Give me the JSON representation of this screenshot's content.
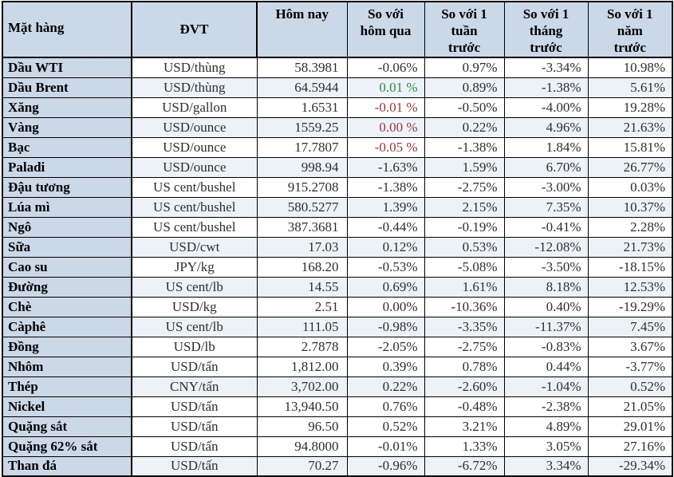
{
  "colors": {
    "header_bg": "#cbd8e7",
    "stripe_bg": "#edf2f9",
    "text": "#2e2e2e",
    "negative_red": "#9c3537",
    "positive_green": "#2f8b3a"
  },
  "chart_data": {
    "type": "table",
    "columns": [
      {
        "key": "name",
        "label": "Mặt hàng"
      },
      {
        "key": "unit",
        "label": "ĐVT"
      },
      {
        "key": "today",
        "label": "Hôm nay"
      },
      {
        "key": "d1",
        "label": "So với\nhôm qua"
      },
      {
        "key": "w1",
        "label": "So với 1\ntuần\ntrước"
      },
      {
        "key": "m1",
        "label": "So với 1\ntháng\ntrước"
      },
      {
        "key": "y1",
        "label": "So với 1\nnăm\ntrước"
      }
    ],
    "rows": [
      {
        "name": "Dầu WTI",
        "unit": "USD/thùng",
        "today": "58.3981",
        "d1": "-0.06%",
        "d1_color": "",
        "w1": "0.97%",
        "m1": "-3.34%",
        "y1": "10.98%",
        "shaded": false
      },
      {
        "name": "Dầu Brent",
        "unit": "USD/thùng",
        "today": "64.5944",
        "d1": "0.01 %",
        "d1_color": "green",
        "w1": "0.89%",
        "m1": "-1.38%",
        "y1": "5.61%",
        "shaded": true
      },
      {
        "name": "Xăng",
        "unit": "USD/gallon",
        "today": "1.6531",
        "d1": "-0.01 %",
        "d1_color": "red",
        "w1": "-0.50%",
        "m1": "-4.00%",
        "y1": "19.28%",
        "shaded": false
      },
      {
        "name": "Vàng",
        "unit": "USD/ounce",
        "today": "1559.25",
        "d1": "0.00 %",
        "d1_color": "red",
        "w1": "0.22%",
        "m1": "4.96%",
        "y1": "21.63%",
        "shaded": true
      },
      {
        "name": "Bạc",
        "unit": "USD/ounce",
        "today": "17.7807",
        "d1": "-0.05 %",
        "d1_color": "red",
        "w1": "-1.38%",
        "m1": "1.84%",
        "y1": "15.81%",
        "shaded": false
      },
      {
        "name": "Paladi",
        "unit": "USD/ounce",
        "today": "998.94",
        "d1": "-1.63%",
        "d1_color": "",
        "w1": "1.59%",
        "m1": "6.70%",
        "y1": "26.77%",
        "shaded": true
      },
      {
        "name": "Đậu tương",
        "unit": "US cent/bushel",
        "today": "915.2708",
        "d1": "-1.38%",
        "d1_color": "",
        "w1": "-2.75%",
        "m1": "-3.00%",
        "y1": "0.03%",
        "shaded": false
      },
      {
        "name": "Lúa mì",
        "unit": "US cent/bushel",
        "today": "580.5277",
        "d1": "1.39%",
        "d1_color": "",
        "w1": "2.15%",
        "m1": "7.35%",
        "y1": "10.37%",
        "shaded": true
      },
      {
        "name": "Ngô",
        "unit": "US cent/bushel",
        "today": "387.3681",
        "d1": "-0.44%",
        "d1_color": "",
        "w1": "-0.19%",
        "m1": "-0.41%",
        "y1": "2.28%",
        "shaded": false
      },
      {
        "name": "Sữa",
        "unit": "USD/cwt",
        "today": "17.03",
        "d1": "0.12%",
        "d1_color": "",
        "w1": "0.53%",
        "m1": "-12.08%",
        "y1": "21.73%",
        "shaded": true
      },
      {
        "name": "Cao su",
        "unit": "JPY/kg",
        "today": "168.20",
        "d1": "-0.53%",
        "d1_color": "",
        "w1": "-5.08%",
        "m1": "-3.50%",
        "y1": "-18.15%",
        "shaded": false
      },
      {
        "name": "Đường",
        "unit": "US cent/lb",
        "today": "14.55",
        "d1": "0.69%",
        "d1_color": "",
        "w1": "1.61%",
        "m1": "8.18%",
        "y1": "12.53%",
        "shaded": true
      },
      {
        "name": "Chè",
        "unit": "USD/kg",
        "today": "2.51",
        "d1": "0.00%",
        "d1_color": "",
        "w1": "-10.36%",
        "m1": "0.40%",
        "y1": "-19.29%",
        "shaded": false
      },
      {
        "name": "Càphê",
        "unit": "US cent/lb",
        "today": "111.05",
        "d1": "-0.98%",
        "d1_color": "",
        "w1": "-3.35%",
        "m1": "-11.37%",
        "y1": "7.45%",
        "shaded": true
      },
      {
        "name": "Đồng",
        "unit": "USD/lb",
        "today": "2.7878",
        "d1": "-2.05%",
        "d1_color": "",
        "w1": "-2.75%",
        "m1": "-0.83%",
        "y1": "3.67%",
        "shaded": false
      },
      {
        "name": "Nhôm",
        "unit": "USD/tấn",
        "today": "1,812.00",
        "d1": "0.39%",
        "d1_color": "",
        "w1": "0.78%",
        "m1": "0.44%",
        "y1": "-3.77%",
        "shaded": false
      },
      {
        "name": "Thép",
        "unit": "CNY/tấn",
        "today": "3,702.00",
        "d1": "0.22%",
        "d1_color": "",
        "w1": "-2.60%",
        "m1": "-1.04%",
        "y1": "0.52%",
        "shaded": true
      },
      {
        "name": "Nickel",
        "unit": "USD/tấn",
        "today": "13,940.50",
        "d1": "0.76%",
        "d1_color": "",
        "w1": "-0.48%",
        "m1": "-2.38%",
        "y1": "21.05%",
        "shaded": false
      },
      {
        "name": "Quặng sắt",
        "unit": "USD/tấn",
        "today": "96.50",
        "d1": "0.52%",
        "d1_color": "",
        "w1": "3.21%",
        "m1": "4.89%",
        "y1": "29.01%",
        "shaded": false
      },
      {
        "name": "Quặng 62% sắt",
        "unit": "USD/tấn",
        "today": "94.8000",
        "d1": "-0.01%",
        "d1_color": "",
        "w1": "1.33%",
        "m1": "3.05%",
        "y1": "27.16%",
        "shaded": false
      },
      {
        "name": "Than đá",
        "unit": "USD/tấn",
        "today": "70.27",
        "d1": "-0.96%",
        "d1_color": "",
        "w1": "-6.72%",
        "m1": "3.34%",
        "y1": "-29.34%",
        "shaded": true
      }
    ]
  }
}
